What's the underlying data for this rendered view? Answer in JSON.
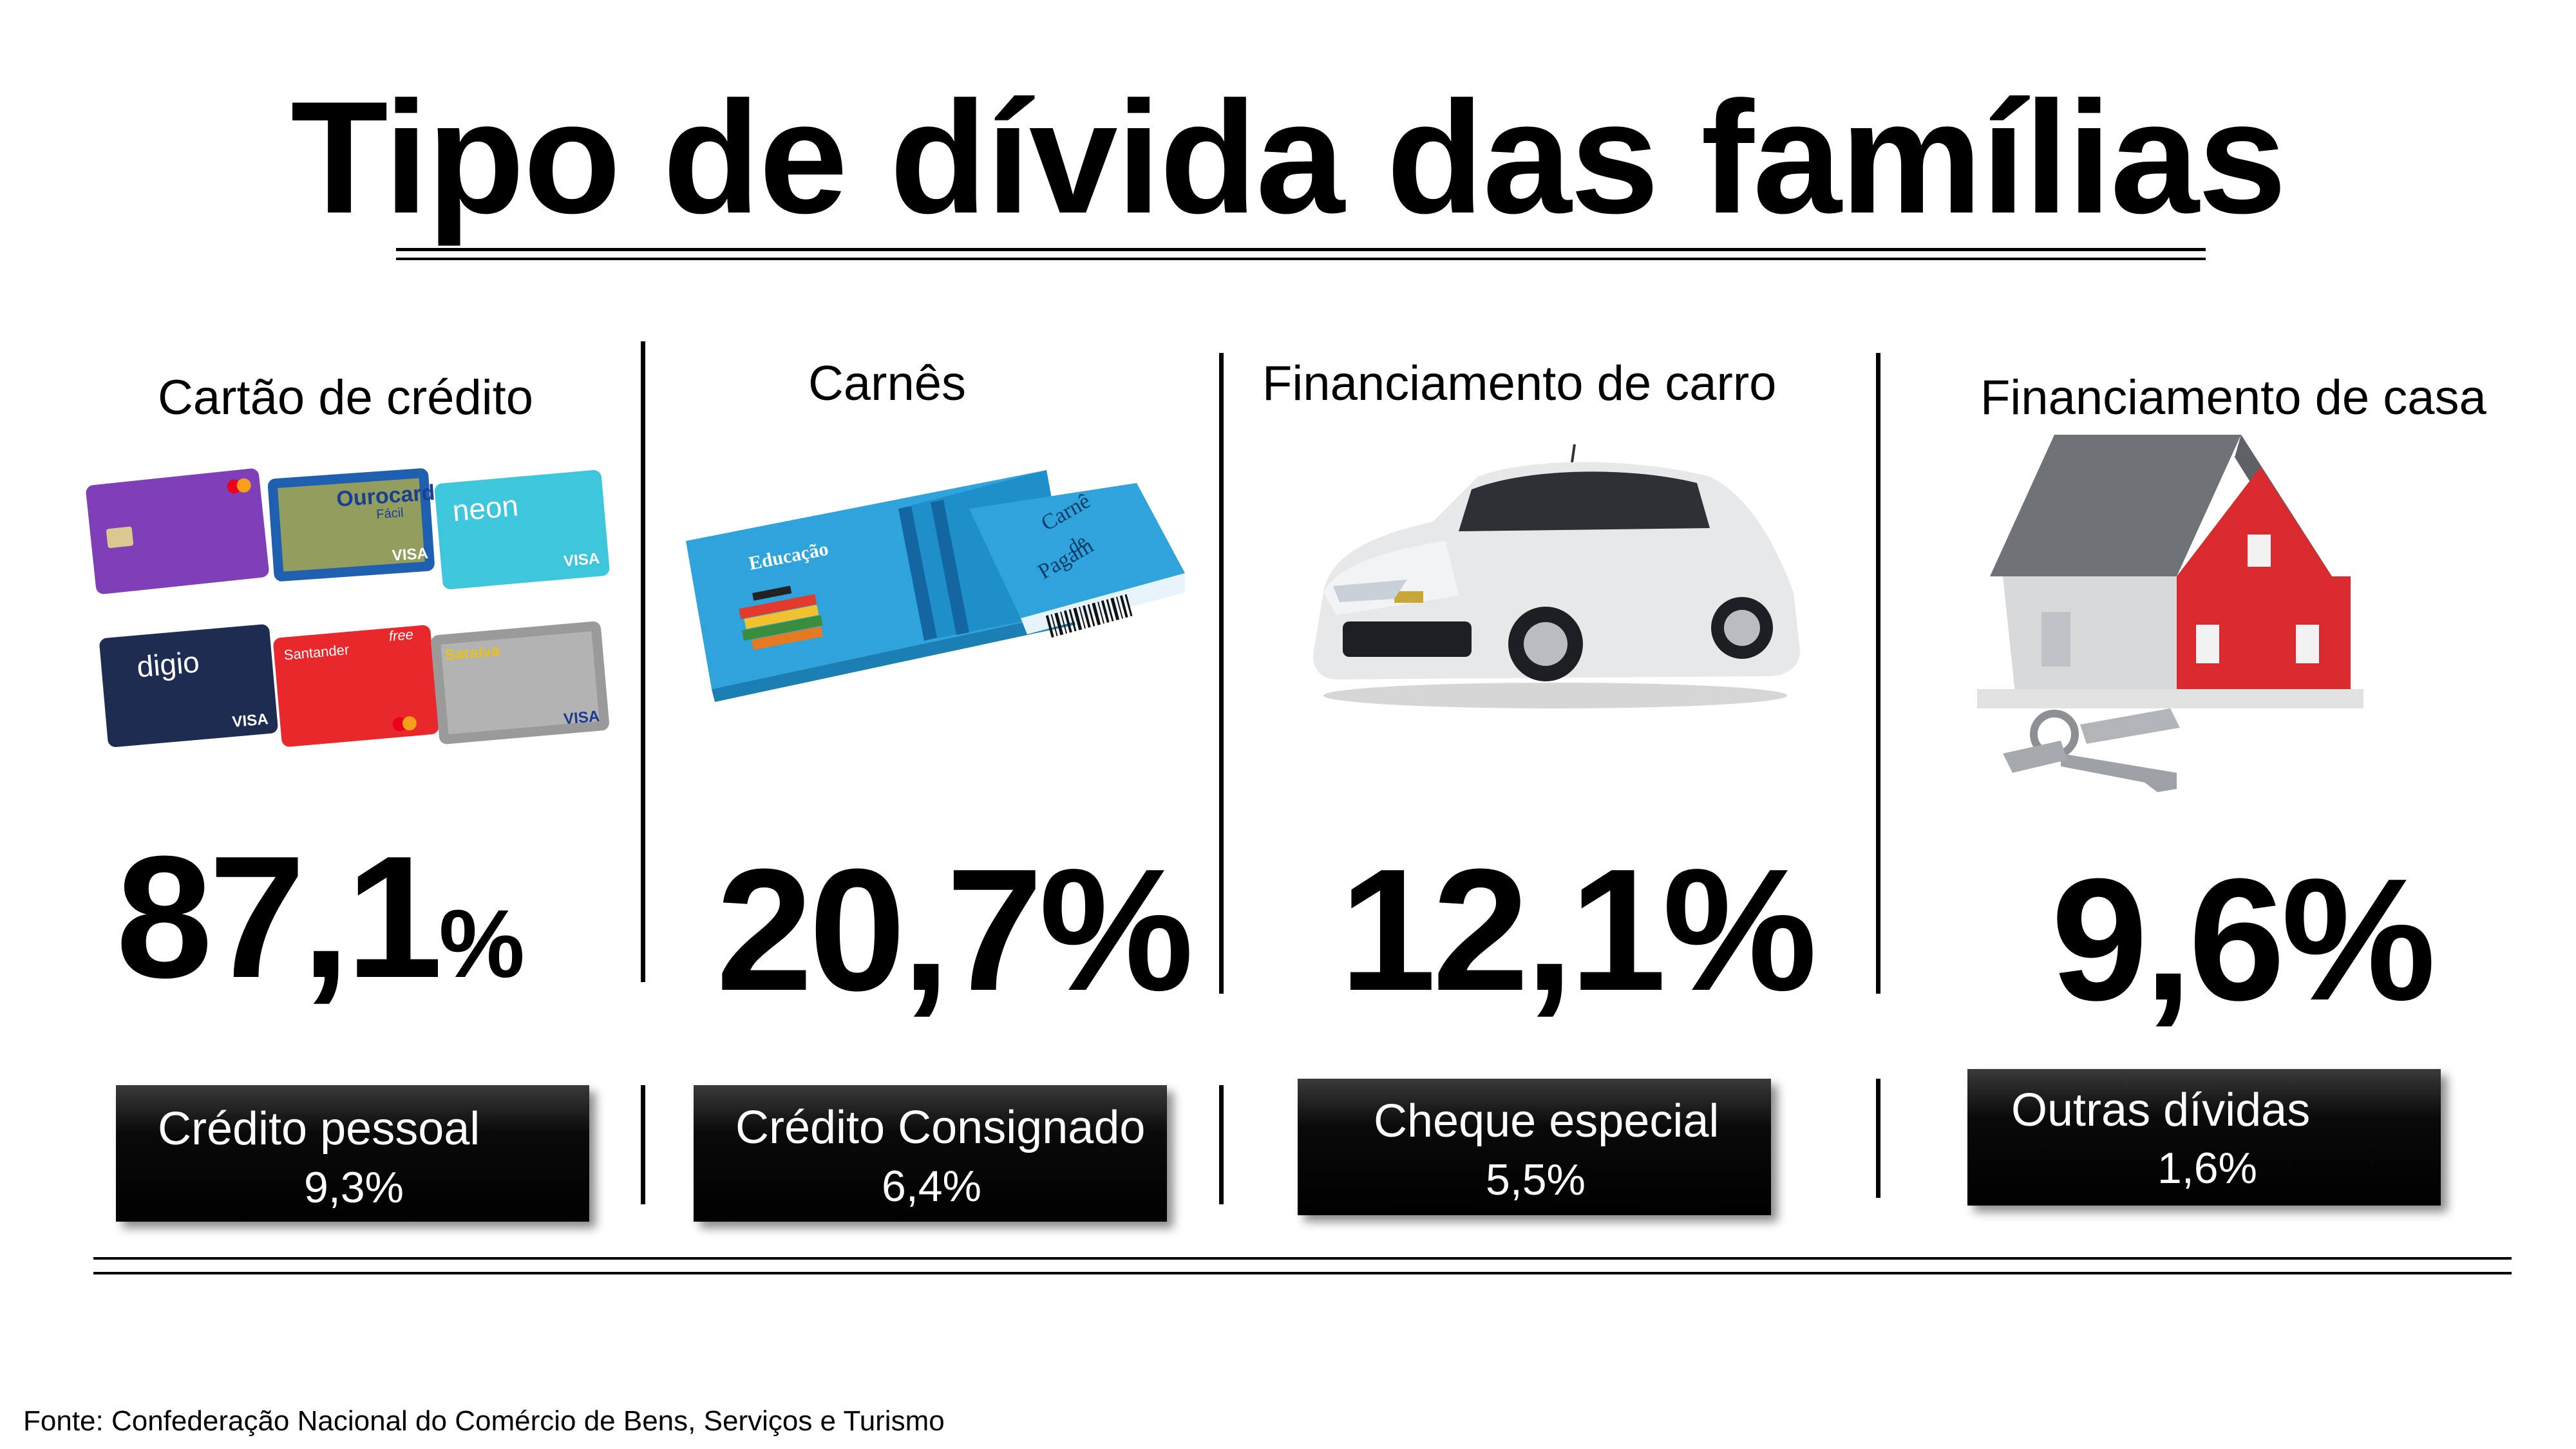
{
  "title": "Tipo de dívida das famílias",
  "chart_data": {
    "type": "table",
    "title": "Tipo de dívida das famílias",
    "unit": "%",
    "main_categories": [
      {
        "label": "Cartão de crédito",
        "value": 87.1,
        "display": "87,1",
        "suffix": "%"
      },
      {
        "label": "Carnês",
        "value": 20.7,
        "display": "20,7%"
      },
      {
        "label": "Financiamento de carro",
        "value": 12.1,
        "display": "12,1%"
      },
      {
        "label": "Financiamento de casa",
        "value": 9.6,
        "display": "9,6%"
      }
    ],
    "secondary_categories": [
      {
        "label": "Crédito pessoal",
        "value": 9.3,
        "display": "9,3%"
      },
      {
        "label": "Crédito Consignado",
        "value": 6.4,
        "display": "6,4%"
      },
      {
        "label": "Cheque especial",
        "value": 5.5,
        "display": "5,5%"
      },
      {
        "label": "Outras dívidas",
        "value": 1.6,
        "display": "1,6%"
      }
    ]
  },
  "illustrations": {
    "credit_cards": {
      "icon": "credit-cards-icon",
      "card_texts": [
        "Ourocard",
        "Fácil",
        "neon",
        "VISA",
        "VISA",
        "digio",
        "VISA",
        "Santander",
        "free",
        "Saraiva",
        "VISA"
      ]
    },
    "carne": {
      "icon": "payment-booklet-icon",
      "texts": [
        "Educação",
        "Carnê",
        "de",
        "Pagam"
      ]
    },
    "car": {
      "icon": "car-icon"
    },
    "house": {
      "icon": "house-with-keys-icon"
    }
  },
  "source": "Fonte: Confederação Nacional do Comércio de Bens, Serviços e Turismo",
  "colors": {
    "text": "#000000",
    "box_bg": "#000000",
    "box_text": "#ffffff",
    "house_red": "#d92a2e",
    "roof": "#7a7a7a",
    "carne_blue": "#2fa4dc"
  }
}
